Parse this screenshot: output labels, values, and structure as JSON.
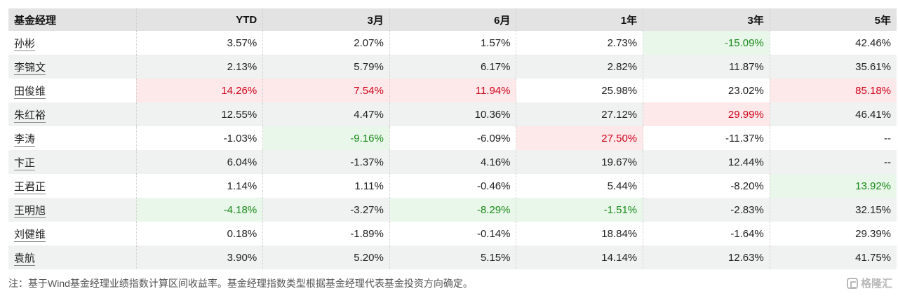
{
  "table": {
    "headers": [
      "基金经理",
      "YTD",
      "3月",
      "6月",
      "1年",
      "3年",
      "5年"
    ],
    "rows": [
      {
        "name": "孙彬",
        "values": [
          "3.57%",
          "2.07%",
          "1.57%",
          "2.73%",
          "-15.09%",
          "42.46%"
        ],
        "highlight": [
          "",
          "",
          "",
          "",
          "green",
          ""
        ]
      },
      {
        "name": "李锦文",
        "values": [
          "2.13%",
          "5.79%",
          "6.17%",
          "2.82%",
          "11.87%",
          "35.61%"
        ],
        "highlight": [
          "",
          "",
          "",
          "",
          "",
          ""
        ]
      },
      {
        "name": "田俊维",
        "values": [
          "14.26%",
          "7.54%",
          "11.94%",
          "25.98%",
          "23.02%",
          "85.18%"
        ],
        "highlight": [
          "red",
          "red",
          "red",
          "",
          "",
          "red"
        ]
      },
      {
        "name": "朱红裕",
        "values": [
          "12.55%",
          "4.47%",
          "10.36%",
          "27.12%",
          "29.99%",
          "46.41%"
        ],
        "highlight": [
          "",
          "",
          "",
          "",
          "red",
          ""
        ]
      },
      {
        "name": "李涛",
        "values": [
          "-1.03%",
          "-9.16%",
          "-6.09%",
          "27.50%",
          "-11.37%",
          "--"
        ],
        "highlight": [
          "",
          "green",
          "",
          "red",
          "",
          ""
        ]
      },
      {
        "name": "卞正",
        "values": [
          "6.04%",
          "-1.37%",
          "4.16%",
          "19.67%",
          "12.44%",
          "--"
        ],
        "highlight": [
          "",
          "",
          "",
          "",
          "",
          ""
        ]
      },
      {
        "name": "王君正",
        "values": [
          "1.14%",
          "1.11%",
          "-0.46%",
          "5.44%",
          "-8.20%",
          "13.92%"
        ],
        "highlight": [
          "",
          "",
          "",
          "",
          "",
          "green"
        ]
      },
      {
        "name": "王明旭",
        "values": [
          "-4.18%",
          "-3.27%",
          "-8.29%",
          "-1.51%",
          "-2.83%",
          "32.15%"
        ],
        "highlight": [
          "green",
          "",
          "green",
          "green",
          "",
          ""
        ]
      },
      {
        "name": "刘健维",
        "values": [
          "0.18%",
          "-1.89%",
          "-0.14%",
          "18.84%",
          "-1.64%",
          "29.39%"
        ],
        "highlight": [
          "",
          "",
          "",
          "",
          "",
          ""
        ]
      },
      {
        "name": "袁航",
        "values": [
          "3.90%",
          "5.20%",
          "5.15%",
          "14.14%",
          "12.63%",
          "41.75%"
        ],
        "highlight": [
          "",
          "",
          "",
          "",
          "",
          ""
        ]
      }
    ]
  },
  "note": "注：基于Wind基金经理业绩指数计算区间收益率。基金经理指数类型根据基金经理代表基金投资方向确定。",
  "watermark": {
    "text": "格隆汇",
    "icon": "gelonghui-logo-icon"
  },
  "colors": {
    "highlight_red_bg": "#fde9e9",
    "highlight_red_text": "#d0021b",
    "highlight_green_bg": "#e9f6ea",
    "highlight_green_text": "#1a8a1a"
  }
}
